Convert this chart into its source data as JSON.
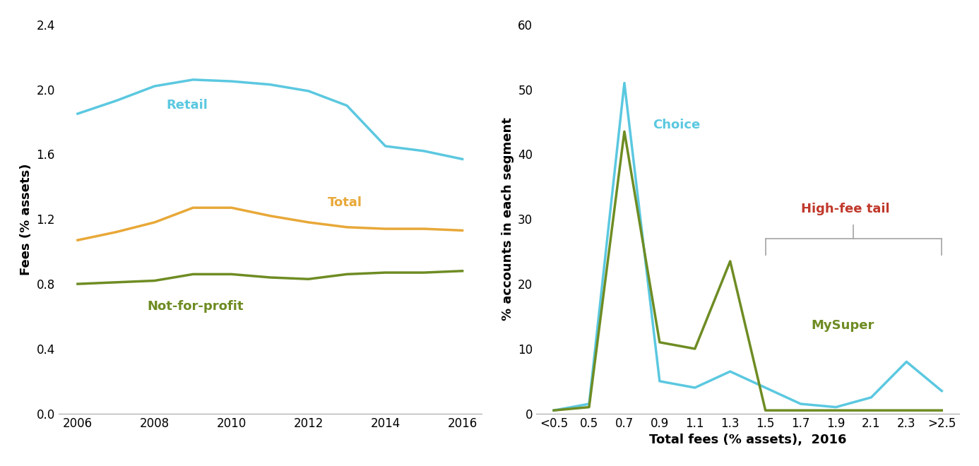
{
  "left_years": [
    2006,
    2007,
    2008,
    2009,
    2010,
    2011,
    2012,
    2013,
    2014,
    2015,
    2016
  ],
  "retail": [
    1.85,
    1.93,
    2.02,
    2.06,
    2.05,
    2.03,
    1.99,
    1.9,
    1.65,
    1.62,
    1.57
  ],
  "total": [
    1.07,
    1.12,
    1.18,
    1.27,
    1.27,
    1.22,
    1.18,
    1.15,
    1.14,
    1.14,
    1.13
  ],
  "nonprofit": [
    0.8,
    0.81,
    0.82,
    0.86,
    0.86,
    0.84,
    0.83,
    0.86,
    0.87,
    0.87,
    0.88
  ],
  "retail_color": "#5BC8E0",
  "total_color": "#E8A838",
  "nonprofit_color": "#6E8C23",
  "left_ylabel": "Fees (% assets)",
  "left_ylim": [
    0,
    2.4
  ],
  "left_yticks": [
    0.0,
    0.4,
    0.8,
    1.2,
    1.6,
    2.0,
    2.4
  ],
  "left_xlim": [
    2005.5,
    2016.5
  ],
  "left_xticks": [
    2006,
    2008,
    2010,
    2012,
    2014,
    2016
  ],
  "right_xtick_labels": [
    "<0.5",
    "0.5",
    "0.7",
    "0.9",
    "1.1",
    "1.3",
    "1.5",
    "1.7",
    "1.9",
    "2.1",
    "2.3",
    ">2.5"
  ],
  "choice_vals": [
    0.5,
    1.5,
    51.0,
    5.0,
    4.0,
    6.5,
    4.0,
    1.5,
    1.0,
    2.5,
    8.0,
    3.5
  ],
  "mysuper_vals": [
    0.5,
    1.0,
    43.5,
    11.0,
    10.0,
    23.5,
    0.5,
    0.5,
    0.5,
    0.5,
    0.5,
    0.5
  ],
  "choice_color": "#5BC8E0",
  "mysuper_color": "#6E8C23",
  "right_ylabel": "% accounts in each segment",
  "right_xlabel": "Total fees (% assets),  2016",
  "right_ylim": [
    0,
    60
  ],
  "right_yticks": [
    0,
    10,
    20,
    30,
    40,
    50,
    60
  ],
  "high_fee_tail_color": "#C0392B",
  "bracket_color": "#aaaaaa",
  "retail_label": "Retail",
  "total_label": "Total",
  "nonprofit_label": "Not-for-profit",
  "choice_label": "Choice",
  "mysuper_label": "MySuper",
  "high_fee_label": "High-fee tail"
}
